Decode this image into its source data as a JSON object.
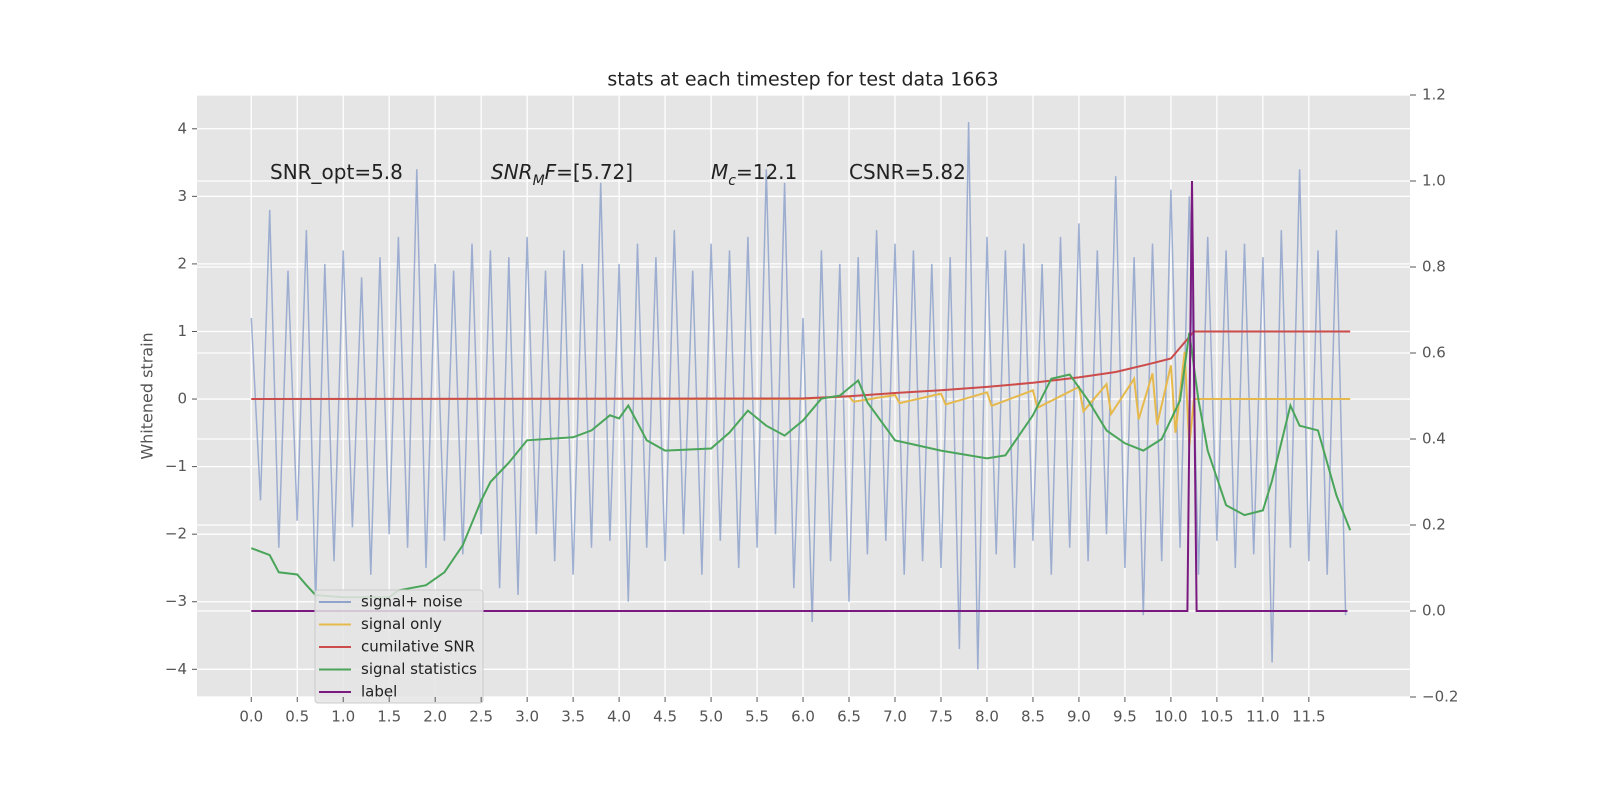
{
  "chart_data": {
    "type": "line",
    "title": "stats at each timestep for test data 1663",
    "y_label": "Whitened strain",
    "annotations": [
      [
        {
          "text": "SNR_opt=5.8",
          "style": "normal"
        }
      ],
      [
        {
          "text": "SNR",
          "style": "italic"
        },
        {
          "text": "M",
          "style": "italic-sub"
        },
        {
          "text": "F",
          "style": "italic"
        },
        {
          "text": "=[5.72]",
          "style": "normal"
        }
      ],
      [
        {
          "text": "M",
          "style": "italic"
        },
        {
          "text": "c",
          "style": "italic-sub"
        },
        {
          "text": "=12.1",
          "style": "normal"
        }
      ],
      [
        {
          "text": "CSNR=5.82",
          "style": "normal"
        }
      ]
    ],
    "xlim": [
      -0.59,
      12.6
    ],
    "xticks": [
      {
        "value": 0,
        "label": "0.0"
      },
      0.5,
      {
        "value": 1,
        "label": "1.0"
      },
      1.5,
      {
        "value": 2,
        "label": "2.0"
      },
      2.5,
      {
        "value": 3,
        "label": "3.0"
      },
      3.5,
      {
        "value": 4,
        "label": "4.0"
      },
      4.5,
      {
        "value": 5,
        "label": "5.0"
      },
      5.5,
      {
        "value": 6,
        "label": "6.0"
      },
      6.5,
      {
        "value": 7,
        "label": "7.0"
      },
      7.5,
      {
        "value": 8,
        "label": "8.0"
      },
      8.5,
      {
        "value": 9,
        "label": "9.0"
      },
      9.5,
      {
        "value": 10,
        "label": "10.0"
      },
      10.5,
      {
        "value": 11,
        "label": "11.0"
      },
      11.5
    ],
    "ylim": [
      -4.41,
      4.5
    ],
    "yticks": [
      {
        "value": -4,
        "label": "−4"
      },
      {
        "value": -3,
        "label": "−3"
      },
      {
        "value": -2,
        "label": "−2"
      },
      {
        "value": -1,
        "label": "−1"
      },
      0,
      1,
      2,
      3,
      4
    ],
    "y2lim": [
      -0.2,
      1.2
    ],
    "y2ticks": [
      {
        "value": -0.2,
        "label": "−0.2"
      },
      {
        "value": 0,
        "label": "0.0"
      },
      0.2,
      0.4,
      0.6,
      0.8,
      {
        "value": 1,
        "label": "1.0"
      },
      1.2
    ],
    "grid": true,
    "legend": "lower left",
    "series": [
      {
        "name": "signal+ noise",
        "color": "#8fa3cc",
        "axis": "y",
        "x": [
          0.0,
          0.1,
          0.2,
          0.3,
          0.4,
          0.5,
          0.6,
          0.7,
          0.8,
          0.9,
          1.0,
          1.1,
          1.2,
          1.3,
          1.4,
          1.5,
          1.6,
          1.7,
          1.8,
          1.9,
          2.0,
          2.1,
          2.2,
          2.3,
          2.4,
          2.5,
          2.6,
          2.7,
          2.8,
          2.9,
          3.0,
          3.1,
          3.2,
          3.3,
          3.4,
          3.5,
          3.6,
          3.7,
          3.8,
          3.9,
          4.0,
          4.1,
          4.2,
          4.3,
          4.4,
          4.5,
          4.6,
          4.7,
          4.8,
          4.9,
          5.0,
          5.1,
          5.2,
          5.3,
          5.4,
          5.5,
          5.6,
          5.7,
          5.8,
          5.9,
          6.0,
          6.1,
          6.2,
          6.3,
          6.4,
          6.5,
          6.6,
          6.7,
          6.8,
          6.9,
          7.0,
          7.1,
          7.2,
          7.3,
          7.4,
          7.5,
          7.6,
          7.7,
          7.8,
          7.9,
          8.0,
          8.1,
          8.2,
          8.3,
          8.4,
          8.5,
          8.6,
          8.7,
          8.8,
          8.9,
          9.0,
          9.1,
          9.2,
          9.3,
          9.4,
          9.5,
          9.6,
          9.7,
          9.8,
          9.9,
          10.0,
          10.1,
          10.2,
          10.3,
          10.4,
          10.5,
          10.6,
          10.7,
          10.8,
          10.9,
          11.0,
          11.1,
          11.2,
          11.3,
          11.4,
          11.5,
          11.6,
          11.7,
          11.8,
          11.9
        ],
        "values": [
          1.2,
          -1.5,
          2.8,
          -2.2,
          1.9,
          -1.8,
          2.5,
          -3.0,
          2.0,
          -2.4,
          2.2,
          -1.9,
          1.8,
          -2.6,
          2.1,
          -2.0,
          2.4,
          -2.2,
          3.4,
          -2.5,
          2.0,
          -2.1,
          1.9,
          -2.3,
          2.3,
          -2.0,
          2.2,
          -2.8,
          2.1,
          -2.9,
          2.4,
          -2.0,
          1.9,
          -2.4,
          2.2,
          -2.6,
          2.0,
          -2.2,
          3.2,
          -2.1,
          2.0,
          -3.0,
          2.3,
          -2.2,
          2.1,
          -2.4,
          2.5,
          -2.0,
          1.9,
          -2.6,
          2.3,
          -2.1,
          2.2,
          -2.5,
          2.4,
          -2.2,
          3.4,
          -2.0,
          3.2,
          -2.8,
          1.2,
          -3.3,
          2.2,
          -2.4,
          2.0,
          -3.0,
          2.1,
          -2.3,
          2.5,
          -2.1,
          2.3,
          -2.6,
          2.2,
          -2.4,
          2.0,
          -2.5,
          2.1,
          -3.7,
          4.1,
          -4.0,
          2.4,
          -2.3,
          2.2,
          -2.5,
          2.3,
          -2.1,
          2.0,
          -2.6,
          2.4,
          -2.2,
          2.6,
          -2.4,
          2.2,
          -2.0,
          3.3,
          -2.5,
          2.1,
          -3.2,
          2.3,
          -2.4,
          3.1,
          -2.2,
          3.0,
          -2.6,
          2.4,
          -2.1,
          2.2,
          -2.5,
          2.3,
          -2.3,
          2.1,
          -3.9,
          2.5,
          -2.2,
          3.4,
          -2.4,
          2.2,
          -2.6,
          2.5,
          -3.2
        ]
      },
      {
        "name": "signal only",
        "color": "#e6b94d",
        "axis": "y",
        "x": [
          0,
          6.0,
          6.5,
          6.55,
          7.0,
          7.05,
          7.5,
          7.55,
          8.0,
          8.05,
          8.5,
          8.55,
          9.0,
          9.05,
          9.3,
          9.35,
          9.6,
          9.65,
          9.8,
          9.85,
          10.0,
          10.05,
          10.15,
          10.2,
          10.25,
          11.95
        ],
        "values": [
          0,
          0,
          0.04,
          -0.04,
          0.06,
          -0.06,
          0.08,
          -0.08,
          0.1,
          -0.1,
          0.13,
          -0.13,
          0.18,
          -0.18,
          0.22,
          -0.22,
          0.3,
          -0.3,
          0.38,
          -0.38,
          0.5,
          -0.5,
          0.7,
          -0.7,
          0,
          0
        ]
      },
      {
        "name": "cumilative SNR",
        "color": "#cc4b4b",
        "axis": "y",
        "x": [
          0,
          6.0,
          6.5,
          7.0,
          7.5,
          8.0,
          8.5,
          9.0,
          9.4,
          9.8,
          10.0,
          10.25,
          11.95
        ],
        "values": [
          0,
          0.01,
          0.04,
          0.09,
          0.13,
          0.18,
          0.24,
          0.32,
          0.4,
          0.53,
          0.6,
          1.0,
          1.0
        ]
      },
      {
        "name": "signal statistics",
        "color": "#4aa55a",
        "axis": "y2",
        "x": [
          0,
          0.2,
          0.3,
          0.5,
          0.6,
          0.7,
          1.0,
          1.5,
          1.6,
          1.9,
          2.1,
          2.3,
          2.5,
          2.6,
          2.8,
          3.0,
          3.5,
          3.7,
          3.9,
          4.0,
          4.1,
          4.3,
          4.5,
          5.0,
          5.2,
          5.4,
          5.6,
          5.8,
          6.0,
          6.2,
          6.4,
          6.6,
          6.7,
          7.0,
          7.5,
          8.0,
          8.2,
          8.5,
          8.7,
          8.9,
          9.1,
          9.3,
          9.5,
          9.7,
          9.9,
          10.1,
          10.2,
          10.3,
          10.4,
          10.6,
          10.8,
          11.0,
          11.1,
          11.3,
          11.4,
          11.6,
          11.8,
          11.95
        ],
        "values": [
          0.146,
          0.13,
          0.09,
          0.085,
          0.06,
          0.037,
          0.032,
          0.032,
          0.048,
          0.06,
          0.09,
          0.153,
          0.257,
          0.3,
          0.345,
          0.397,
          0.404,
          0.42,
          0.455,
          0.448,
          0.478,
          0.397,
          0.373,
          0.378,
          0.415,
          0.466,
          0.431,
          0.408,
          0.443,
          0.494,
          0.501,
          0.536,
          0.485,
          0.397,
          0.373,
          0.355,
          0.362,
          0.455,
          0.54,
          0.55,
          0.49,
          0.42,
          0.39,
          0.373,
          0.4,
          0.49,
          0.647,
          0.49,
          0.373,
          0.246,
          0.223,
          0.234,
          0.304,
          0.478,
          0.431,
          0.42,
          0.269,
          0.188
        ]
      },
      {
        "name": "label",
        "color": "#7a1a80",
        "axis": "y2",
        "x": [
          0,
          10.18,
          10.23,
          10.28,
          11.92
        ],
        "values": [
          0,
          0,
          1.0,
          0,
          0
        ]
      }
    ]
  }
}
